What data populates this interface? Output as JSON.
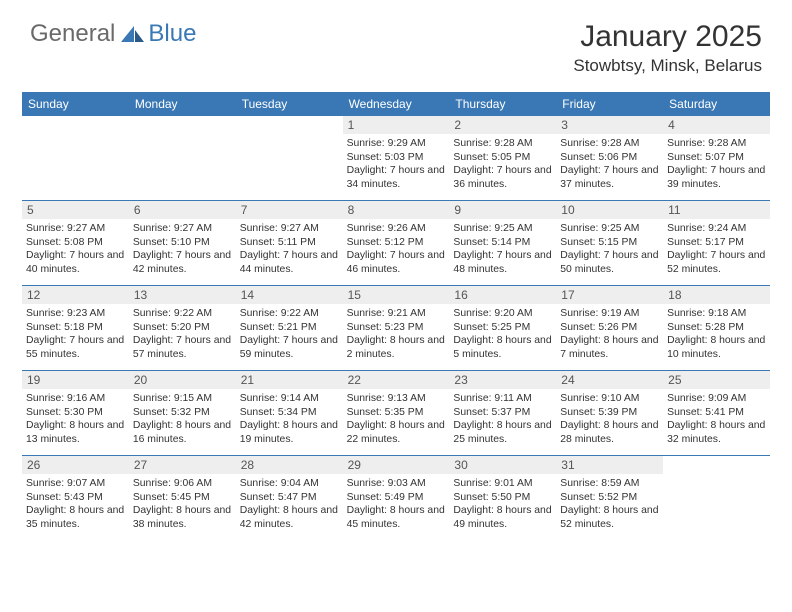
{
  "colors": {
    "header_bar": "#3a78b5",
    "daynum_bg": "#eeeeee",
    "text": "#333333",
    "logo_gray": "#6a6a6a",
    "logo_blue": "#3a78b5",
    "background": "#ffffff"
  },
  "typography": {
    "title_fontsize": 30,
    "location_fontsize": 17,
    "dayheader_fontsize": 12,
    "daynum_fontsize": 12,
    "info_fontsize": 10.4
  },
  "logo": {
    "text1": "General",
    "text2": "Blue"
  },
  "title": "January 2025",
  "location": "Stowbtsy, Minsk, Belarus",
  "dayHeaders": [
    "Sunday",
    "Monday",
    "Tuesday",
    "Wednesday",
    "Thursday",
    "Friday",
    "Saturday"
  ],
  "calendar": {
    "blank_leading": 3,
    "blank_trailing": 1,
    "days": [
      {
        "n": "1",
        "sr": "9:29 AM",
        "ss": "5:03 PM",
        "dl": "7 hours and 34 minutes."
      },
      {
        "n": "2",
        "sr": "9:28 AM",
        "ss": "5:05 PM",
        "dl": "7 hours and 36 minutes."
      },
      {
        "n": "3",
        "sr": "9:28 AM",
        "ss": "5:06 PM",
        "dl": "7 hours and 37 minutes."
      },
      {
        "n": "4",
        "sr": "9:28 AM",
        "ss": "5:07 PM",
        "dl": "7 hours and 39 minutes."
      },
      {
        "n": "5",
        "sr": "9:27 AM",
        "ss": "5:08 PM",
        "dl": "7 hours and 40 minutes."
      },
      {
        "n": "6",
        "sr": "9:27 AM",
        "ss": "5:10 PM",
        "dl": "7 hours and 42 minutes."
      },
      {
        "n": "7",
        "sr": "9:27 AM",
        "ss": "5:11 PM",
        "dl": "7 hours and 44 minutes."
      },
      {
        "n": "8",
        "sr": "9:26 AM",
        "ss": "5:12 PM",
        "dl": "7 hours and 46 minutes."
      },
      {
        "n": "9",
        "sr": "9:25 AM",
        "ss": "5:14 PM",
        "dl": "7 hours and 48 minutes."
      },
      {
        "n": "10",
        "sr": "9:25 AM",
        "ss": "5:15 PM",
        "dl": "7 hours and 50 minutes."
      },
      {
        "n": "11",
        "sr": "9:24 AM",
        "ss": "5:17 PM",
        "dl": "7 hours and 52 minutes."
      },
      {
        "n": "12",
        "sr": "9:23 AM",
        "ss": "5:18 PM",
        "dl": "7 hours and 55 minutes."
      },
      {
        "n": "13",
        "sr": "9:22 AM",
        "ss": "5:20 PM",
        "dl": "7 hours and 57 minutes."
      },
      {
        "n": "14",
        "sr": "9:22 AM",
        "ss": "5:21 PM",
        "dl": "7 hours and 59 minutes."
      },
      {
        "n": "15",
        "sr": "9:21 AM",
        "ss": "5:23 PM",
        "dl": "8 hours and 2 minutes."
      },
      {
        "n": "16",
        "sr": "9:20 AM",
        "ss": "5:25 PM",
        "dl": "8 hours and 5 minutes."
      },
      {
        "n": "17",
        "sr": "9:19 AM",
        "ss": "5:26 PM",
        "dl": "8 hours and 7 minutes."
      },
      {
        "n": "18",
        "sr": "9:18 AM",
        "ss": "5:28 PM",
        "dl": "8 hours and 10 minutes."
      },
      {
        "n": "19",
        "sr": "9:16 AM",
        "ss": "5:30 PM",
        "dl": "8 hours and 13 minutes."
      },
      {
        "n": "20",
        "sr": "9:15 AM",
        "ss": "5:32 PM",
        "dl": "8 hours and 16 minutes."
      },
      {
        "n": "21",
        "sr": "9:14 AM",
        "ss": "5:34 PM",
        "dl": "8 hours and 19 minutes."
      },
      {
        "n": "22",
        "sr": "9:13 AM",
        "ss": "5:35 PM",
        "dl": "8 hours and 22 minutes."
      },
      {
        "n": "23",
        "sr": "9:11 AM",
        "ss": "5:37 PM",
        "dl": "8 hours and 25 minutes."
      },
      {
        "n": "24",
        "sr": "9:10 AM",
        "ss": "5:39 PM",
        "dl": "8 hours and 28 minutes."
      },
      {
        "n": "25",
        "sr": "9:09 AM",
        "ss": "5:41 PM",
        "dl": "8 hours and 32 minutes."
      },
      {
        "n": "26",
        "sr": "9:07 AM",
        "ss": "5:43 PM",
        "dl": "8 hours and 35 minutes."
      },
      {
        "n": "27",
        "sr": "9:06 AM",
        "ss": "5:45 PM",
        "dl": "8 hours and 38 minutes."
      },
      {
        "n": "28",
        "sr": "9:04 AM",
        "ss": "5:47 PM",
        "dl": "8 hours and 42 minutes."
      },
      {
        "n": "29",
        "sr": "9:03 AM",
        "ss": "5:49 PM",
        "dl": "8 hours and 45 minutes."
      },
      {
        "n": "30",
        "sr": "9:01 AM",
        "ss": "5:50 PM",
        "dl": "8 hours and 49 minutes."
      },
      {
        "n": "31",
        "sr": "8:59 AM",
        "ss": "5:52 PM",
        "dl": "8 hours and 52 minutes."
      }
    ]
  },
  "labels": {
    "sunrise": "Sunrise:",
    "sunset": "Sunset:",
    "daylight": "Daylight:"
  }
}
